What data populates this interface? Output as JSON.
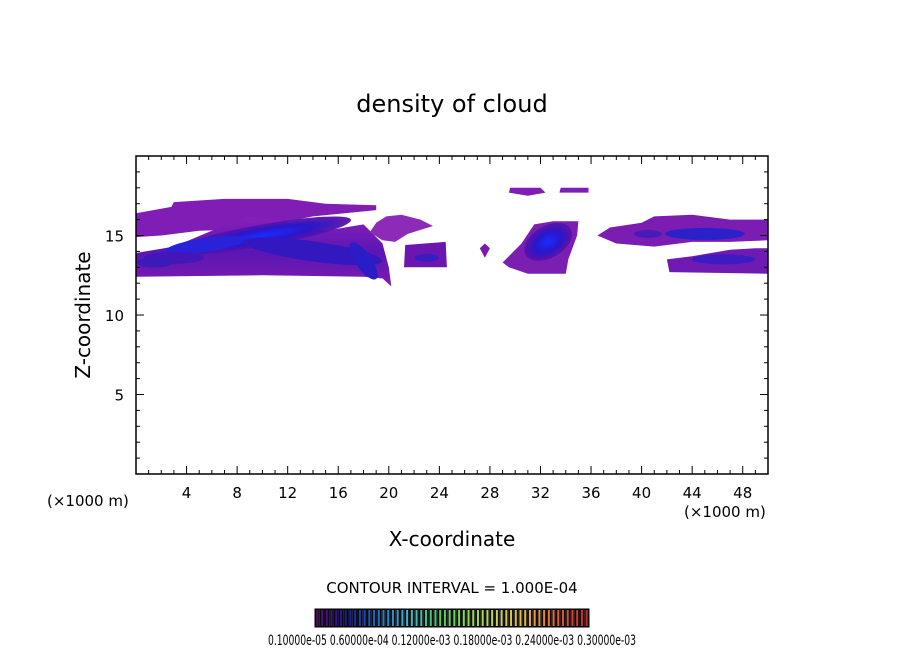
{
  "chart_data": {
    "type": "heatmap",
    "title": "density of cloud",
    "xlabel": "X-coordinate",
    "ylabel": "Z-coordinate",
    "xunit": "(×1000 m)",
    "xunit_right": "(×1000 m)",
    "xlim": [
      0,
      50
    ],
    "ylim": [
      0,
      20
    ],
    "xticks": [
      4,
      8,
      12,
      16,
      20,
      24,
      28,
      32,
      36,
      40,
      44,
      48
    ],
    "yticks": [
      5,
      10,
      15
    ],
    "contour_interval_text": "CONTOUR INTERVAL = 1.000E-04",
    "colorbar_text": "0.10000e-05 0.60000e-04 0.12000e-03 0.18000e-03 0.24000e-03 0.30000e-03",
    "colorbar_colors": [
      "#5a0a78",
      "#1a1aa0",
      "#1e6ec8",
      "#3ab4d2",
      "#4cc86e",
      "#8cdc50",
      "#c8d25a",
      "#e6b446",
      "#e0643c",
      "#c82832"
    ],
    "cloud_color_low": "#7e1fb0",
    "cloud_color_high": "#1515ff",
    "regions": [
      {
        "note": "upper layer west",
        "x": [
          0,
          19
        ],
        "z": [
          14.8,
          17.3
        ],
        "density": 5e-05
      },
      {
        "note": "main core",
        "x": [
          2,
          19
        ],
        "z": [
          12.5,
          15.5
        ],
        "density": 0.00012
      },
      {
        "note": "lower layer west",
        "x": [
          0,
          20
        ],
        "z": [
          12.3,
          14.2
        ],
        "density": 6e-05
      },
      {
        "note": "small cloud",
        "x": [
          21.5,
          24.5
        ],
        "z": [
          13.0,
          14.5
        ],
        "density": 4e-05
      },
      {
        "note": "small blob",
        "x": [
          27.5,
          28
        ],
        "z": [
          13.6,
          14.4
        ],
        "density": 3e-05
      },
      {
        "note": "cloud at 32",
        "x": [
          29,
          35
        ],
        "z": [
          12.6,
          16.0
        ],
        "density": 0.00011
      },
      {
        "note": "high blobs",
        "x": [
          29.5,
          36
        ],
        "z": [
          17.6,
          18.0
        ],
        "density": 4e-05
      },
      {
        "note": "upper layer east",
        "x": [
          36.5,
          50
        ],
        "z": [
          14.5,
          16.2
        ],
        "density": 7e-05
      },
      {
        "note": "lower layer east",
        "x": [
          42,
          50
        ],
        "z": [
          12.6,
          14.2
        ],
        "density": 6e-05
      }
    ]
  }
}
